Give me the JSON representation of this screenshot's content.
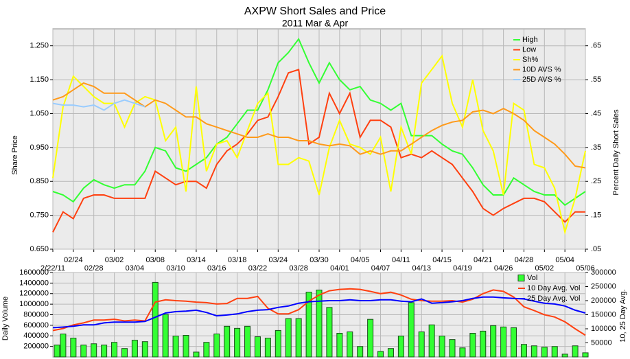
{
  "chart_data": [
    {
      "type": "line",
      "title": "AXPW Short Sales and Price",
      "subtitle": "2011 Mar & Apr",
      "ylabel": "Share Price",
      "y2label": "Percent Daily Short Sales",
      "categories": [
        "2/22/11",
        null,
        "02/24",
        null,
        "02/28",
        null,
        "03/02",
        null,
        "03/04",
        null,
        "03/08",
        null,
        "03/10",
        null,
        "03/14",
        null,
        "03/16",
        null,
        "03/18",
        null,
        "03/22",
        null,
        "03/24",
        null,
        "03/28",
        null,
        "03/30",
        null,
        "04/01",
        null,
        "04/05",
        null,
        "04/07",
        null,
        "04/11",
        null,
        "04/13",
        null,
        "04/15",
        null,
        "04/19",
        null,
        "04/21",
        null,
        "04/26",
        null,
        "04/28",
        null,
        "05/02",
        null,
        "05/04",
        null,
        "05/06"
      ],
      "series": [
        {
          "name": "High",
          "color": "#33ff33",
          "values": [
            0.82,
            0.81,
            0.79,
            0.83,
            0.855,
            0.84,
            0.83,
            0.84,
            0.84,
            0.88,
            0.95,
            0.94,
            0.89,
            0.88,
            0.9,
            0.92,
            0.96,
            0.98,
            1.02,
            1.06,
            1.06,
            1.12,
            1.2,
            1.23,
            1.27,
            1.2,
            1.14,
            1.2,
            1.15,
            1.12,
            1.13,
            1.09,
            1.08,
            1.06,
            1.08,
            0.985,
            0.985,
            0.985,
            0.96,
            0.94,
            0.93,
            0.89,
            0.84,
            0.81,
            0.81,
            0.86,
            0.84,
            0.82,
            0.81,
            0.81,
            0.78,
            0.8,
            0.82
          ]
        },
        {
          "name": "Low",
          "color": "#ff4010",
          "values": [
            0.7,
            0.76,
            0.74,
            0.8,
            0.81,
            0.81,
            0.8,
            0.8,
            0.8,
            0.8,
            0.88,
            0.86,
            0.84,
            0.85,
            0.85,
            0.83,
            0.9,
            0.94,
            0.96,
            0.99,
            1.03,
            1.04,
            1.1,
            1.17,
            1.18,
            0.96,
            0.98,
            1.11,
            1.05,
            1.11,
            0.98,
            1.03,
            1.03,
            1.01,
            0.92,
            0.93,
            0.92,
            0.94,
            0.92,
            0.9,
            0.86,
            0.82,
            0.77,
            0.75,
            0.77,
            0.785,
            0.8,
            0.8,
            0.79,
            0.76,
            0.73,
            0.76,
            0.76
          ]
        },
        {
          "name": "Sh%",
          "color": "#ffff00",
          "axis": "y2",
          "values": [
            0.26,
            0.47,
            0.56,
            0.53,
            0.5,
            0.48,
            0.48,
            0.41,
            0.48,
            0.5,
            0.49,
            0.37,
            0.41,
            0.22,
            0.53,
            0.28,
            0.36,
            0.37,
            0.32,
            0.4,
            0.48,
            0.51,
            0.3,
            0.3,
            0.32,
            0.31,
            0.21,
            0.35,
            0.43,
            0.36,
            0.35,
            0.33,
            0.38,
            0.22,
            0.41,
            0.33,
            0.54,
            0.58,
            0.62,
            0.48,
            0.41,
            0.55,
            0.4,
            0.34,
            0.21,
            0.48,
            0.46,
            0.3,
            0.29,
            0.23,
            0.1,
            0.2,
            0.34
          ]
        },
        {
          "name": "10D AVS %",
          "color": "#ff9a1a",
          "axis": "y2",
          "values": [
            0.49,
            0.5,
            0.52,
            0.54,
            0.53,
            0.51,
            0.51,
            0.51,
            0.49,
            0.47,
            0.49,
            0.48,
            0.46,
            0.44,
            0.44,
            0.42,
            0.41,
            0.4,
            0.39,
            0.38,
            0.38,
            0.39,
            0.38,
            0.38,
            0.37,
            0.37,
            0.36,
            0.355,
            0.36,
            0.355,
            0.33,
            0.34,
            0.33,
            0.34,
            0.34,
            0.36,
            0.38,
            0.4,
            0.415,
            0.425,
            0.43,
            0.455,
            0.46,
            0.45,
            0.465,
            0.45,
            0.43,
            0.4,
            0.38,
            0.36,
            0.33,
            0.295,
            0.29
          ]
        },
        {
          "name": "25D AVS %",
          "color": "#99ccff",
          "axis": "y2",
          "values": [
            0.48,
            0.475,
            0.475,
            0.47,
            0.475,
            0.46,
            0.48,
            0.49,
            0.48,
            0.47,
            null,
            null,
            null,
            null,
            null,
            null,
            null,
            null,
            null,
            null,
            null,
            null,
            null,
            null,
            null,
            null,
            null,
            null,
            null,
            null,
            null,
            null,
            null,
            null,
            null,
            null,
            null,
            null,
            null,
            null,
            null,
            null,
            null,
            null,
            null,
            null,
            null,
            null,
            null,
            null,
            null,
            null,
            null
          ]
        }
      ],
      "ylim": [
        0.65,
        1.3
      ],
      "yticks": [
        {
          "value": 0.65,
          "label": "0.650"
        },
        {
          "value": 0.75,
          "label": "0.750"
        },
        {
          "value": 0.85,
          "label": "0.850"
        },
        {
          "value": 0.95,
          "label": "0.950"
        },
        {
          "value": 1.05,
          "label": "1.050"
        },
        {
          "value": 1.15,
          "label": "1.150"
        },
        {
          "value": 1.25,
          "label": "1.250"
        }
      ],
      "y2lim": [
        0.05,
        0.7
      ],
      "y2ticks": [
        {
          "value": 0.05,
          "label": ".05"
        },
        {
          "value": 0.15,
          "label": ".15"
        },
        {
          "value": 0.25,
          "label": ".25"
        },
        {
          "value": 0.35,
          "label": ".35"
        },
        {
          "value": 0.45,
          "label": ".45"
        },
        {
          "value": 0.55,
          "label": ".55"
        },
        {
          "value": 0.65,
          "label": ".65"
        }
      ],
      "grid": true,
      "legend": "upper right"
    },
    {
      "type": "bar",
      "ylabel": "Daily Volume",
      "y2label": "10, 25 Day Avg.",
      "series": [
        {
          "name": "Vol",
          "color": "#33ff33",
          "values": [
            225000,
            435000,
            357000,
            225000,
            250000,
            225000,
            277000,
            160000,
            317000,
            290000,
            1413000,
            806000,
            396000,
            410000,
            92000,
            277000,
            436000,
            581000,
            542000,
            581000,
            383000,
            357000,
            502000,
            727000,
            727000,
            1228000,
            1268000,
            938000,
            449000,
            476000,
            198000,
            713000,
            106000,
            160000,
            396000,
            1030000,
            476000,
            608000,
            396000,
            330000,
            172000,
            449000,
            489000,
            594000,
            568000,
            555000,
            238000,
            211000,
            185000,
            198000,
            53000,
            211000,
            79000
          ]
        },
        {
          "name": "10 Day Avg. Vol",
          "color": "#ff4010",
          "type": "line",
          "axis": "y2",
          "values": [
            94000,
            101000,
            114000,
            121000,
            131000,
            131000,
            134000,
            128000,
            131000,
            128000,
            195000,
            203000,
            200000,
            198000,
            195000,
            193000,
            188000,
            190000,
            208000,
            208000,
            215000,
            173000,
            153000,
            153000,
            168000,
            198000,
            220000,
            235000,
            240000,
            242000,
            240000,
            233000,
            225000,
            230000,
            220000,
            205000,
            200000,
            198000,
            198000,
            200000,
            195000,
            205000,
            225000,
            238000,
            233000,
            213000,
            178000,
            165000,
            150000,
            142000,
            125000,
            100000,
            77000
          ]
        },
        {
          "name": "25 Day Avg. Vol",
          "color": "#0000ff",
          "type": "line",
          "axis": "y2",
          "values": [
            104000,
            106000,
            109000,
            114000,
            114000,
            121000,
            124000,
            124000,
            124000,
            126000,
            141000,
            156000,
            161000,
            163000,
            166000,
            158000,
            146000,
            149000,
            153000,
            161000,
            166000,
            168000,
            176000,
            181000,
            191000,
            196000,
            198000,
            200000,
            200000,
            203000,
            200000,
            200000,
            203000,
            203000,
            198000,
            196000,
            206000,
            191000,
            193000,
            196000,
            200000,
            208000,
            213000,
            213000,
            210000,
            208000,
            206000,
            198000,
            191000,
            188000,
            181000,
            166000,
            156000
          ]
        }
      ],
      "ylim": [
        0,
        1600000
      ],
      "yticks": [
        200000,
        400000,
        600000,
        800000,
        1000000,
        1200000,
        1400000,
        1600000
      ],
      "y2lim": [
        0,
        300000
      ],
      "y2ticks": [
        50000,
        100000,
        150000,
        200000,
        250000,
        300000
      ],
      "grid": true,
      "legend": "upper right"
    }
  ]
}
